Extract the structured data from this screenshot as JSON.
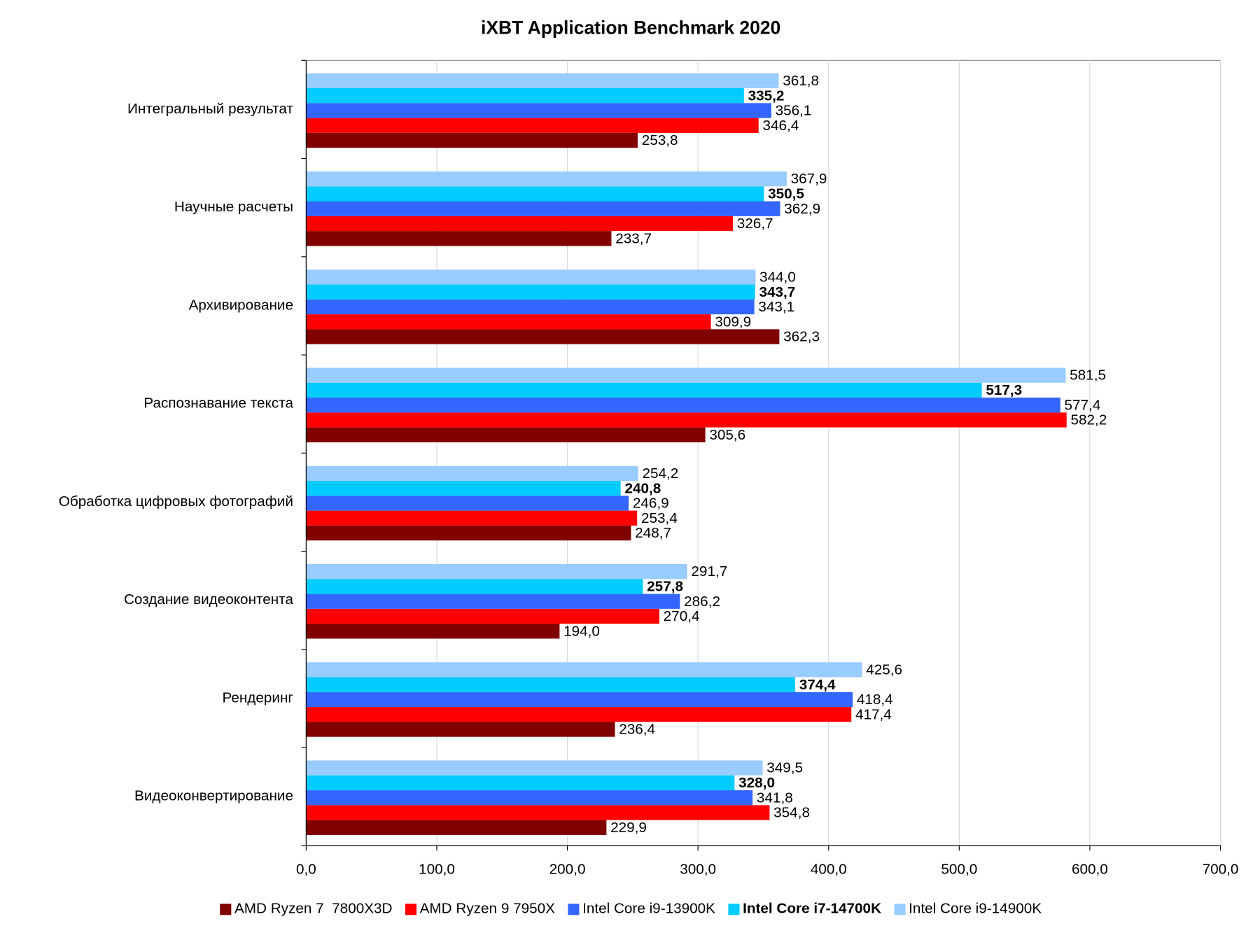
{
  "chart_data": {
    "type": "hbar",
    "title": "iXBT Application Benchmark 2020",
    "categories": [
      "Интегральный результат",
      "Научные расчеты",
      "Архивирование",
      "Распознавание текста",
      "Обработка цифровых фотографий",
      "Создание видеоконтента",
      "Рендеринг",
      "Видеоконвертирование"
    ],
    "series": [
      {
        "name": "AMD Ryzen 7  7800X3D",
        "color": "#800000",
        "bold": false,
        "values": [
          253.8,
          233.7,
          362.3,
          305.6,
          248.7,
          194.0,
          236.4,
          229.9
        ],
        "value_labels": [
          "253,8",
          "233,7",
          "362,3",
          "305,6",
          "248,7",
          "194,0",
          "236,4",
          "229,9"
        ]
      },
      {
        "name": "AMD Ryzen 9 7950X",
        "color": "#ff0000",
        "bold": false,
        "values": [
          346.4,
          326.7,
          309.9,
          582.2,
          253.4,
          270.4,
          417.4,
          354.8
        ],
        "value_labels": [
          "346,4",
          "326,7",
          "309,9",
          "582,2",
          "253,4",
          "270,4",
          "417,4",
          "354,8"
        ]
      },
      {
        "name": "Intel Core i9-13900K",
        "color": "#3366ff",
        "bold": false,
        "values": [
          356.1,
          362.9,
          343.1,
          577.4,
          246.9,
          286.2,
          418.4,
          341.8
        ],
        "value_labels": [
          "356,1",
          "362,9",
          "343,1",
          "577,4",
          "246,9",
          "286,2",
          "418,4",
          "341,8"
        ]
      },
      {
        "name": "Intel Core i7-14700K",
        "color": "#00ccff",
        "bold": true,
        "values": [
          335.2,
          350.5,
          343.7,
          517.3,
          240.8,
          257.8,
          374.4,
          328.0
        ],
        "value_labels": [
          "335,2",
          "350,5",
          "343,7",
          "517,3",
          "240,8",
          "257,8",
          "374,4",
          "328,0"
        ]
      },
      {
        "name": "Intel Core i9-14900K",
        "color": "#99ccff",
        "bold": false,
        "values": [
          361.8,
          367.9,
          344.0,
          581.5,
          254.2,
          291.7,
          425.6,
          349.5
        ],
        "value_labels": [
          "361,8",
          "367,9",
          "344,0",
          "581,5",
          "254,2",
          "291,7",
          "425,6",
          "349,5"
        ]
      }
    ],
    "xlim": [
      0,
      700
    ],
    "xticks": [
      {
        "value": 0,
        "label": "0,0"
      },
      {
        "value": 100,
        "label": "100,0"
      },
      {
        "value": 200,
        "label": "200,0"
      },
      {
        "value": 300,
        "label": "300,0"
      },
      {
        "value": 400,
        "label": "400,0"
      },
      {
        "value": 500,
        "label": "500,0"
      },
      {
        "value": 600,
        "label": "600,0"
      },
      {
        "value": 700,
        "label": "700,0"
      }
    ],
    "grid": true,
    "legend": "bottom"
  }
}
